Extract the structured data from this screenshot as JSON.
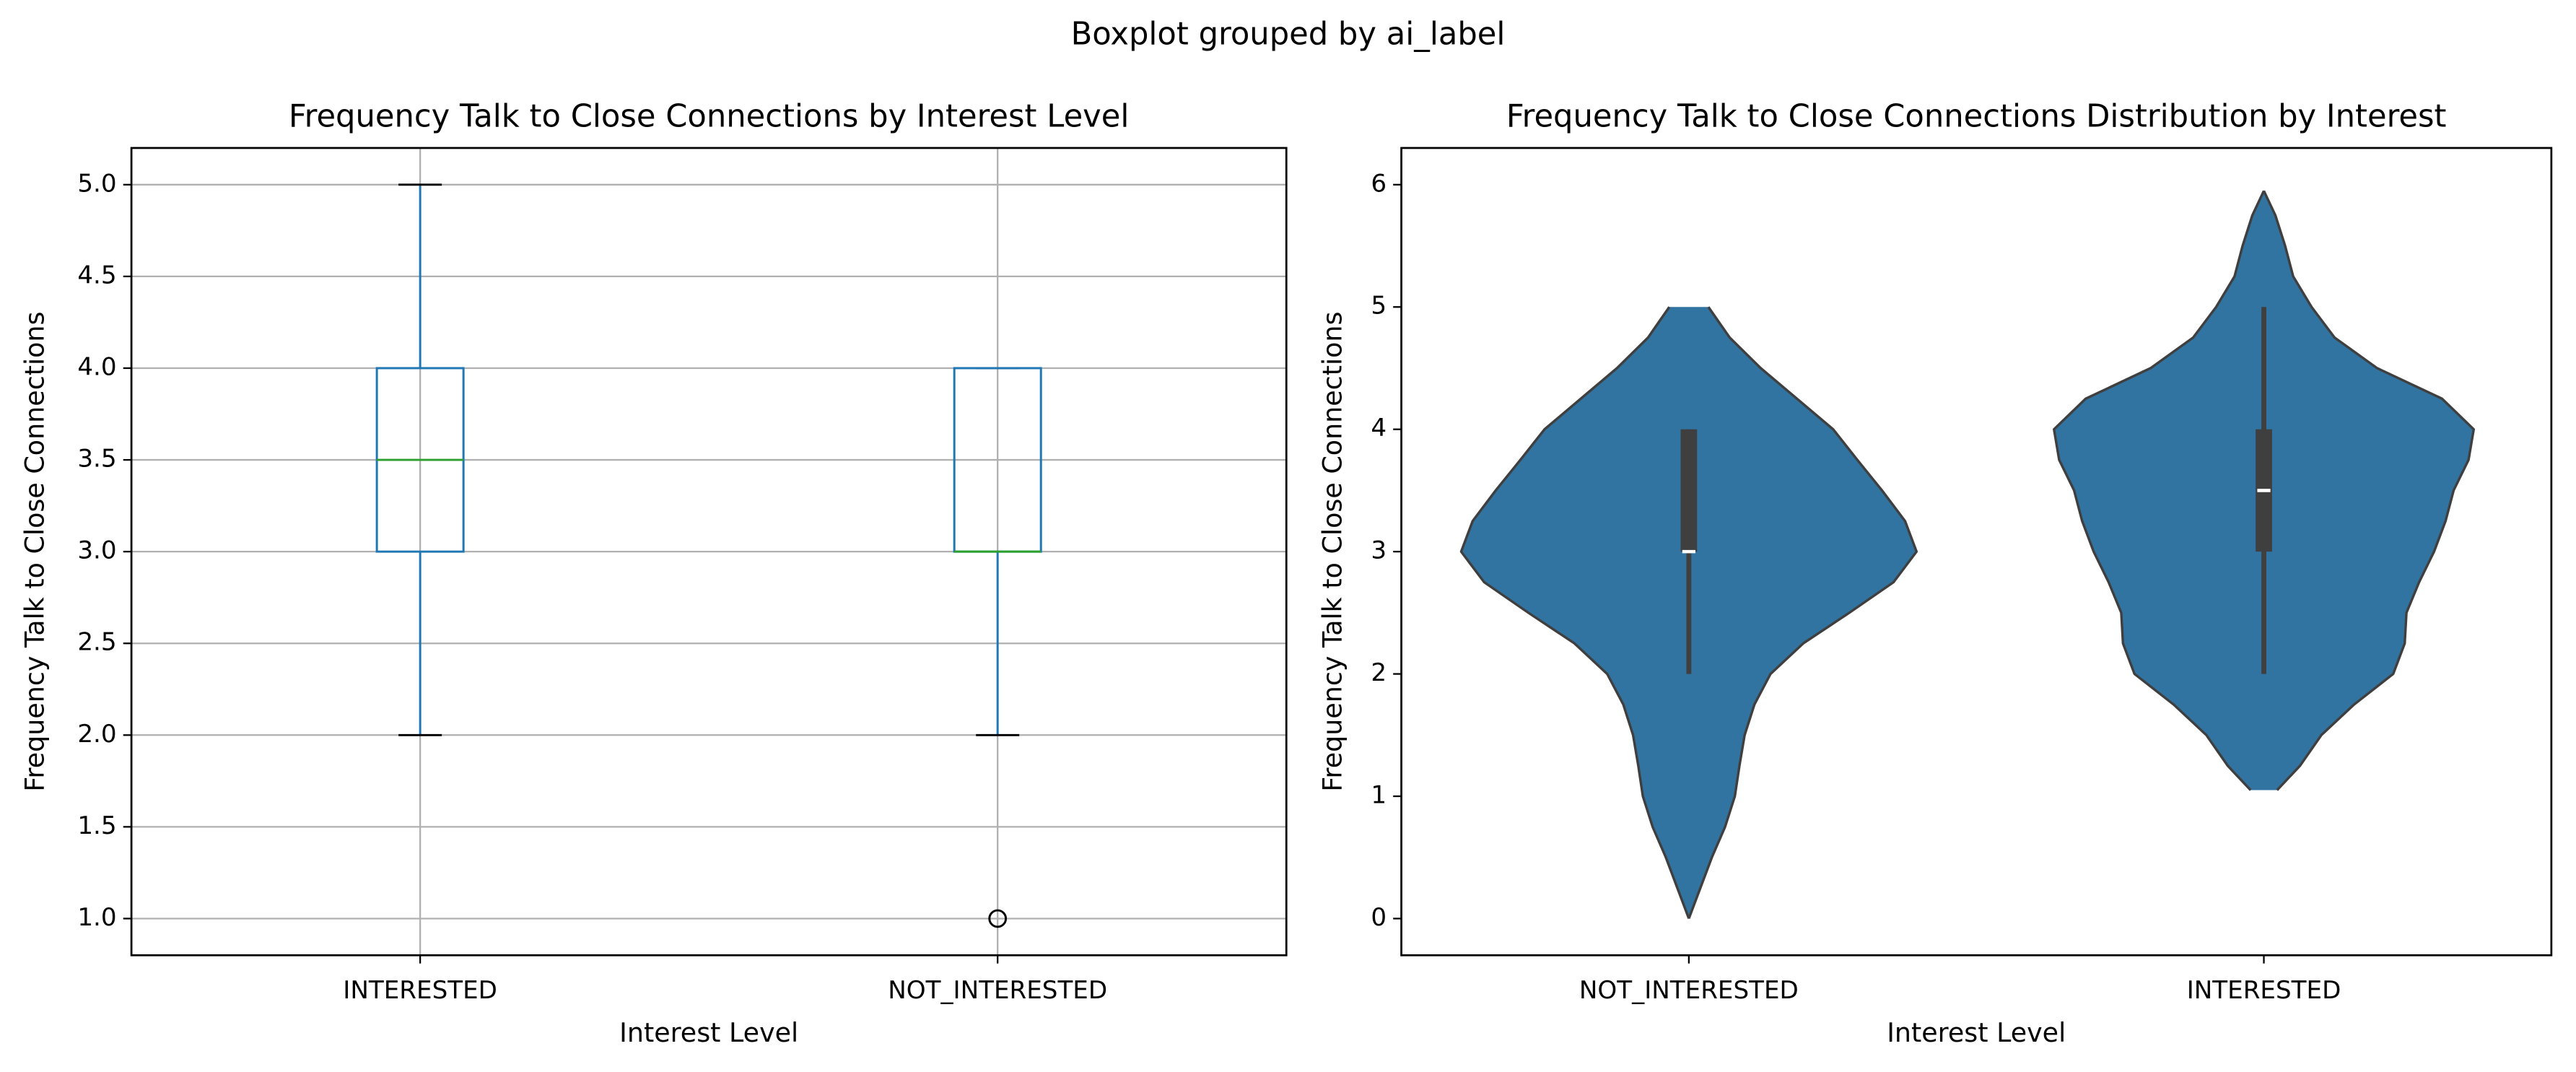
{
  "suptitle": "Boxplot grouped by ai_label",
  "chart_data": [
    {
      "type": "box",
      "title": "Frequency Talk to Close Connections by Interest Level",
      "xlabel": "Interest Level",
      "ylabel": "Frequency Talk to Close Connections",
      "categories": [
        "INTERESTED",
        "NOT_INTERESTED"
      ],
      "boxes": [
        {
          "whislo": 2,
          "q1": 3,
          "med": 3.5,
          "q3": 4,
          "whishi": 5,
          "fliers": []
        },
        {
          "whislo": 2,
          "q1": 3,
          "med": 3,
          "q3": 4,
          "whishi": 4,
          "fliers": [
            1
          ]
        }
      ],
      "color": "#1f77b4",
      "median_color": "#2ca02c",
      "ylim": [
        0.8,
        5.2
      ],
      "yticks": [
        {
          "value": 1,
          "label": "1.0"
        },
        {
          "value": 1.5,
          "label": "1.5"
        },
        {
          "value": 2,
          "label": "2.0"
        },
        {
          "value": 2.5,
          "label": "2.5"
        },
        {
          "value": 3,
          "label": "3.0"
        },
        {
          "value": 3.5,
          "label": "3.5"
        },
        {
          "value": 4,
          "label": "4.0"
        },
        {
          "value": 4.5,
          "label": "4.5"
        },
        {
          "value": 5,
          "label": "5.0"
        }
      ],
      "grid": true
    },
    {
      "type": "violin",
      "title": "Frequency Talk to Close Connections Distribution by Interest",
      "xlabel": "Interest Level",
      "ylabel": "Frequency Talk to Close Connections",
      "categories": [
        "NOT_INTERESTED",
        "INTERESTED"
      ],
      "violins": [
        {
          "y": [
            0,
            0.25,
            0.5,
            0.75,
            1,
            1.25,
            1.5,
            1.75,
            2,
            2.25,
            2.5,
            2.75,
            3,
            3.25,
            3.5,
            3.75,
            4,
            4.25,
            4.5,
            4.75,
            5
          ],
          "halfwidth": [
            0,
            0.02,
            0.04,
            0.063,
            0.08,
            0.088,
            0.097,
            0.114,
            0.142,
            0.199,
            0.279,
            0.356,
            0.396,
            0.376,
            0.336,
            0.293,
            0.251,
            0.188,
            0.125,
            0.071,
            0.034
          ]
        },
        {
          "y": [
            1.05,
            1.25,
            1.5,
            1.75,
            2,
            2.25,
            2.5,
            2.75,
            3,
            3.25,
            3.5,
            3.75,
            4,
            4.25,
            4.5,
            4.75,
            5,
            5.25,
            5.5,
            5.75,
            5.95
          ],
          "halfwidth": [
            0.023,
            0.063,
            0.1,
            0.157,
            0.225,
            0.245,
            0.248,
            0.27,
            0.296,
            0.316,
            0.33,
            0.356,
            0.365,
            0.31,
            0.197,
            0.123,
            0.083,
            0.051,
            0.037,
            0.02,
            0
          ]
        }
      ],
      "boxes": [
        {
          "whislo": 2,
          "q1": 3,
          "med": 3,
          "q3": 4,
          "whishi": 4
        },
        {
          "whislo": 2,
          "q1": 3,
          "med": 3.5,
          "q3": 4,
          "whishi": 5
        }
      ],
      "color": "#3274a1",
      "edge_color": "#3f3f3f",
      "median_color": "#ffffff",
      "ylim": [
        -0.3,
        6.3
      ],
      "yticks": [
        0,
        1,
        2,
        3,
        4,
        5,
        6
      ],
      "grid": false
    }
  ]
}
